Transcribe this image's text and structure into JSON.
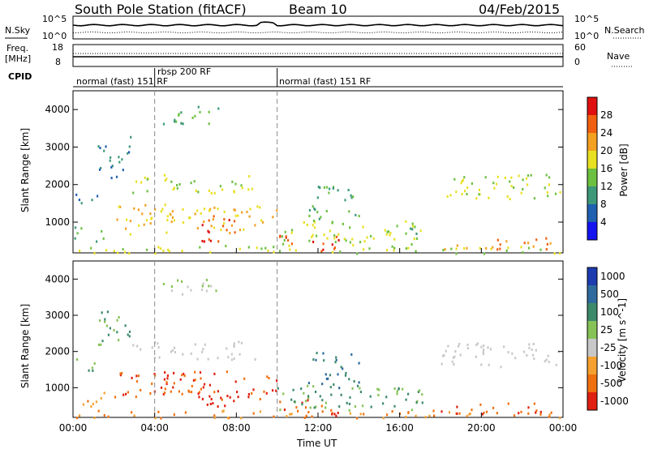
{
  "header": {
    "station": "South Pole Station (fitACF)",
    "beam": "Beam 10",
    "date": "04/Feb/2015"
  },
  "noise_panel": {
    "left_label": "N.Sky",
    "right_label": "N.Search",
    "left_ticks": [
      "10^5",
      "10^0"
    ],
    "right_ticks": [
      "10^5",
      "10^0"
    ]
  },
  "freq_panel": {
    "left_label_1": "Freq.",
    "left_label_2": "[MHz]",
    "right_label": "Nave",
    "left_ticks": [
      "18",
      "8"
    ],
    "right_ticks": [
      "60",
      "0"
    ]
  },
  "cpid_panel": {
    "label": "CPID",
    "segments": [
      {
        "start_h": 0,
        "end_h": 4,
        "text": "normal (fast) 151 RF"
      },
      {
        "start_h": 4,
        "end_h": 10,
        "text": "rbsp 200 RF"
      },
      {
        "start_h": 10,
        "end_h": 24,
        "text": "normal (fast) 151 RF"
      }
    ]
  },
  "x_axis": {
    "label": "Time UT",
    "ticks": [
      "00:00",
      "04:00",
      "08:00",
      "12:00",
      "16:00",
      "20:00",
      "00:00"
    ]
  },
  "power_panel": {
    "ylabel": "Slant Range [km]",
    "yticks": [
      "1000",
      "2000",
      "3000",
      "4000"
    ],
    "colorbar_title": "Power [dB]",
    "colorbar_ticks": [
      "4",
      "8",
      "12",
      "16",
      "20",
      "24",
      "28"
    ],
    "colors": [
      "#1414f0",
      "#2060b0",
      "#3c9878",
      "#6cc040",
      "#e8e020",
      "#f4a020",
      "#f06010",
      "#e01010"
    ]
  },
  "velocity_panel": {
    "ylabel": "Slant Range [km]",
    "yticks": [
      "1000",
      "2000",
      "3000",
      "4000"
    ],
    "colorbar_title": "Velocity [m s^-1]",
    "colorbar_ticks": [
      "1000",
      "500",
      "100",
      "25",
      "-25",
      "-100",
      "-500",
      "-1000"
    ],
    "colors": [
      "#1c3cb0",
      "#2f6a9e",
      "#3c8a6a",
      "#86c256",
      "#c8c8c8",
      "#f5a030",
      "#f07010",
      "#e02010"
    ]
  },
  "chart_data": {
    "type": "heatmap",
    "x_range_hours": [
      0,
      24
    ],
    "y_range_km": [
      180,
      4500
    ],
    "regions": [
      {
        "t": [
          0.0,
          24.0
        ],
        "r": [
          180,
          400
        ],
        "power": 16,
        "velocity": -100
      },
      {
        "t": [
          0.0,
          1.5
        ],
        "r": [
          500,
          900
        ],
        "power": 12,
        "velocity": -100
      },
      {
        "t": [
          0.0,
          1.2
        ],
        "r": [
          1500,
          1900
        ],
        "power": 8,
        "velocity": 100
      },
      {
        "t": [
          1.2,
          2.8
        ],
        "r": [
          2200,
          3300
        ],
        "power": 8,
        "velocity": 100
      },
      {
        "t": [
          2.8,
          9.0
        ],
        "r": [
          1800,
          2300
        ],
        "power": 16,
        "velocity": 0
      },
      {
        "t": [
          2.0,
          10.0
        ],
        "r": [
          700,
          1500
        ],
        "power": 20,
        "velocity": -500
      },
      {
        "t": [
          6.0,
          8.0
        ],
        "r": [
          500,
          1200
        ],
        "power": 28,
        "velocity": -1000
      },
      {
        "t": [
          4.4,
          7.2
        ],
        "r": [
          3600,
          4100
        ],
        "power": 12,
        "velocity": 25
      },
      {
        "t": [
          10.0,
          13.0
        ],
        "r": [
          250,
          700
        ],
        "power": 28,
        "velocity": -500
      },
      {
        "t": [
          10.0,
          17.0
        ],
        "r": [
          400,
          1100
        ],
        "power": 16,
        "velocity": 100
      },
      {
        "t": [
          11.5,
          14.0
        ],
        "r": [
          1000,
          2000
        ],
        "power": 12,
        "velocity": 500
      },
      {
        "t": [
          16.4,
          17.2
        ],
        "r": [
          600,
          1000
        ],
        "power": 12,
        "velocity": 100
      },
      {
        "t": [
          18.0,
          24.0
        ],
        "r": [
          1600,
          2300
        ],
        "power": 16,
        "velocity": 0
      },
      {
        "t": [
          18.0,
          23.5
        ],
        "r": [
          300,
          600
        ],
        "power": 24,
        "velocity": -500
      }
    ]
  }
}
